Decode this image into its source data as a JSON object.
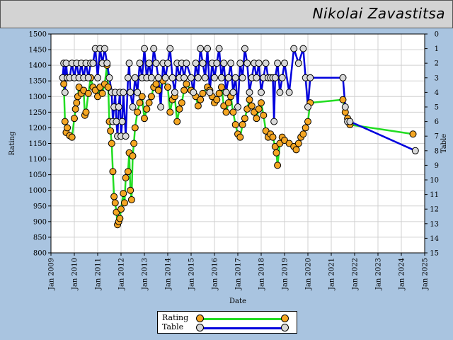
{
  "header": {
    "title": "Nikolai Zavastitsa"
  },
  "legend": {
    "rating_label": "Rating",
    "table_label": "Table"
  },
  "colors": {
    "rating_line": "#22dd22",
    "rating_dot": "#f5a623",
    "table_line": "#0000dd",
    "table_dot": "#d8d8d8",
    "background": "#a9c4e0"
  },
  "chart_data": {
    "type": "line",
    "xlabel": "Date",
    "ylabel_left": "Rating",
    "ylabel_right": "Table",
    "x_ticks": [
      "Jan 2009",
      "Jan 2010",
      "Jan 2011",
      "Jan 2012",
      "Jan 2013",
      "Jan 2014",
      "Jan 2015",
      "Jan 2016",
      "Jan 2017",
      "Jan 2018",
      "Jan 2019",
      "Jan 2020",
      "Jan 2021",
      "Jan 2022",
      "Jan 2023",
      "Jan 2024",
      "Jan 2025"
    ],
    "xlim": [
      2009,
      2025
    ],
    "ylim_left": [
      800,
      1500
    ],
    "ylim_right": [
      15,
      0
    ],
    "y_ticks_left": [
      800,
      850,
      900,
      950,
      1000,
      1050,
      1100,
      1150,
      1200,
      1250,
      1300,
      1350,
      1400,
      1450,
      1500
    ],
    "y_ticks_right": [
      0,
      1,
      2,
      3,
      4,
      5,
      6,
      7,
      8,
      9,
      10,
      11,
      12,
      13,
      14,
      15
    ],
    "grid": true,
    "legend_position": "bottom-center",
    "series": [
      {
        "name": "Rating",
        "axis": "left",
        "points": [
          [
            2009.55,
            1340
          ],
          [
            2009.6,
            1220
          ],
          [
            2009.65,
            1185
          ],
          [
            2009.7,
            1200
          ],
          [
            2009.8,
            1175
          ],
          [
            2009.9,
            1170
          ],
          [
            2010.0,
            1230
          ],
          [
            2010.05,
            1260
          ],
          [
            2010.1,
            1280
          ],
          [
            2010.15,
            1300
          ],
          [
            2010.2,
            1330
          ],
          [
            2010.3,
            1310
          ],
          [
            2010.4,
            1320
          ],
          [
            2010.45,
            1240
          ],
          [
            2010.5,
            1250
          ],
          [
            2010.6,
            1310
          ],
          [
            2010.7,
            1360
          ],
          [
            2010.8,
            1330
          ],
          [
            2010.9,
            1320
          ],
          [
            2011.0,
            1300
          ],
          [
            2011.1,
            1330
          ],
          [
            2011.2,
            1310
          ],
          [
            2011.3,
            1340
          ],
          [
            2011.4,
            1400
          ],
          [
            2011.45,
            1330
          ],
          [
            2011.5,
            1220
          ],
          [
            2011.55,
            1190
          ],
          [
            2011.6,
            1150
          ],
          [
            2011.65,
            1060
          ],
          [
            2011.7,
            980
          ],
          [
            2011.75,
            960
          ],
          [
            2011.8,
            930
          ],
          [
            2011.85,
            890
          ],
          [
            2011.9,
            900
          ],
          [
            2011.95,
            910
          ],
          [
            2012.0,
            940
          ],
          [
            2012.1,
            990
          ],
          [
            2012.15,
            960
          ],
          [
            2012.2,
            1040
          ],
          [
            2012.3,
            1060
          ],
          [
            2012.35,
            1120
          ],
          [
            2012.4,
            1000
          ],
          [
            2012.45,
            970
          ],
          [
            2012.5,
            1110
          ],
          [
            2012.55,
            1150
          ],
          [
            2012.6,
            1200
          ],
          [
            2012.7,
            1250
          ],
          [
            2012.8,
            1280
          ],
          [
            2012.9,
            1300
          ],
          [
            2013.0,
            1230
          ],
          [
            2013.1,
            1260
          ],
          [
            2013.2,
            1280
          ],
          [
            2013.3,
            1300
          ],
          [
            2013.4,
            1330
          ],
          [
            2013.5,
            1340
          ],
          [
            2013.6,
            1320
          ],
          [
            2013.8,
            1350
          ],
          [
            2014.0,
            1330
          ],
          [
            2014.1,
            1250
          ],
          [
            2014.2,
            1290
          ],
          [
            2014.3,
            1300
          ],
          [
            2014.4,
            1220
          ],
          [
            2014.5,
            1260
          ],
          [
            2014.6,
            1280
          ],
          [
            2014.7,
            1320
          ],
          [
            2014.8,
            1340
          ],
          [
            2015.0,
            1320
          ],
          [
            2015.2,
            1300
          ],
          [
            2015.3,
            1270
          ],
          [
            2015.4,
            1290
          ],
          [
            2015.5,
            1310
          ],
          [
            2015.7,
            1330
          ],
          [
            2015.8,
            1320
          ],
          [
            2015.9,
            1300
          ],
          [
            2016.0,
            1280
          ],
          [
            2016.1,
            1290
          ],
          [
            2016.2,
            1310
          ],
          [
            2016.3,
            1330
          ],
          [
            2016.4,
            1270
          ],
          [
            2016.5,
            1250
          ],
          [
            2016.6,
            1280
          ],
          [
            2016.7,
            1300
          ],
          [
            2016.8,
            1250
          ],
          [
            2016.9,
            1210
          ],
          [
            2017.0,
            1180
          ],
          [
            2017.1,
            1170
          ],
          [
            2017.2,
            1210
          ],
          [
            2017.3,
            1230
          ],
          [
            2017.4,
            1260
          ],
          [
            2017.5,
            1290
          ],
          [
            2017.6,
            1270
          ],
          [
            2017.7,
            1250
          ],
          [
            2017.8,
            1230
          ],
          [
            2017.9,
            1260
          ],
          [
            2018.0,
            1280
          ],
          [
            2018.1,
            1240
          ],
          [
            2018.2,
            1190
          ],
          [
            2018.3,
            1170
          ],
          [
            2018.4,
            1180
          ],
          [
            2018.5,
            1170
          ],
          [
            2018.6,
            1140
          ],
          [
            2018.65,
            1120
          ],
          [
            2018.7,
            1080
          ],
          [
            2018.8,
            1150
          ],
          [
            2018.9,
            1170
          ],
          [
            2019.0,
            1160
          ],
          [
            2019.2,
            1150
          ],
          [
            2019.4,
            1140
          ],
          [
            2019.5,
            1130
          ],
          [
            2019.6,
            1150
          ],
          [
            2019.7,
            1170
          ],
          [
            2019.8,
            1180
          ],
          [
            2019.9,
            1200
          ],
          [
            2020.0,
            1220
          ],
          [
            2020.1,
            1280
          ],
          [
            2021.5,
            1290
          ],
          [
            2021.6,
            1250
          ],
          [
            2021.7,
            1230
          ],
          [
            2021.8,
            1210
          ],
          [
            2024.5,
            1180
          ]
        ]
      },
      {
        "name": "Table",
        "axis": "right",
        "points": [
          [
            2009.5,
            3
          ],
          [
            2009.55,
            2
          ],
          [
            2009.6,
            4
          ],
          [
            2009.65,
            2
          ],
          [
            2009.7,
            3
          ],
          [
            2009.8,
            3
          ],
          [
            2009.9,
            2
          ],
          [
            2010.0,
            3
          ],
          [
            2010.1,
            2
          ],
          [
            2010.2,
            3
          ],
          [
            2010.3,
            2
          ],
          [
            2010.4,
            3
          ],
          [
            2010.5,
            2
          ],
          [
            2010.6,
            3
          ],
          [
            2010.7,
            2
          ],
          [
            2010.8,
            2
          ],
          [
            2010.9,
            1
          ],
          [
            2011.0,
            3
          ],
          [
            2011.1,
            1
          ],
          [
            2011.2,
            2
          ],
          [
            2011.3,
            1
          ],
          [
            2011.4,
            2
          ],
          [
            2011.5,
            3
          ],
          [
            2011.6,
            4
          ],
          [
            2011.65,
            6
          ],
          [
            2011.7,
            5
          ],
          [
            2011.75,
            4
          ],
          [
            2011.8,
            6
          ],
          [
            2011.85,
            7
          ],
          [
            2011.9,
            5
          ],
          [
            2011.95,
            4
          ],
          [
            2012.0,
            7
          ],
          [
            2012.05,
            6
          ],
          [
            2012.1,
            4
          ],
          [
            2012.2,
            7
          ],
          [
            2012.3,
            3
          ],
          [
            2012.35,
            2
          ],
          [
            2012.4,
            4
          ],
          [
            2012.5,
            5
          ],
          [
            2012.6,
            3
          ],
          [
            2012.7,
            4
          ],
          [
            2012.8,
            2
          ],
          [
            2012.9,
            3
          ],
          [
            2013.0,
            1
          ],
          [
            2013.1,
            3
          ],
          [
            2013.2,
            2
          ],
          [
            2013.3,
            3
          ],
          [
            2013.4,
            1
          ],
          [
            2013.5,
            2
          ],
          [
            2013.6,
            3
          ],
          [
            2013.7,
            5
          ],
          [
            2013.8,
            2
          ],
          [
            2013.9,
            3
          ],
          [
            2014.0,
            2
          ],
          [
            2014.1,
            1
          ],
          [
            2014.2,
            3
          ],
          [
            2014.3,
            4
          ],
          [
            2014.4,
            2
          ],
          [
            2014.5,
            3
          ],
          [
            2014.6,
            2
          ],
          [
            2014.7,
            3
          ],
          [
            2014.8,
            2
          ],
          [
            2015.0,
            3
          ],
          [
            2015.1,
            4
          ],
          [
            2015.2,
            2
          ],
          [
            2015.3,
            3
          ],
          [
            2015.4,
            1
          ],
          [
            2015.5,
            2
          ],
          [
            2015.6,
            3
          ],
          [
            2015.7,
            1
          ],
          [
            2015.8,
            4
          ],
          [
            2015.9,
            2
          ],
          [
            2016.0,
            3
          ],
          [
            2016.1,
            2
          ],
          [
            2016.2,
            1
          ],
          [
            2016.3,
            3
          ],
          [
            2016.4,
            2
          ],
          [
            2016.5,
            4
          ],
          [
            2016.6,
            3
          ],
          [
            2016.7,
            2
          ],
          [
            2016.8,
            4
          ],
          [
            2016.9,
            3
          ],
          [
            2017.0,
            5
          ],
          [
            2017.1,
            2
          ],
          [
            2017.2,
            3
          ],
          [
            2017.3,
            1
          ],
          [
            2017.4,
            2
          ],
          [
            2017.5,
            4
          ],
          [
            2017.6,
            3
          ],
          [
            2017.7,
            2
          ],
          [
            2017.8,
            3
          ],
          [
            2017.9,
            2
          ],
          [
            2018.0,
            4
          ],
          [
            2018.1,
            3
          ],
          [
            2018.2,
            2
          ],
          [
            2018.3,
            3
          ],
          [
            2018.4,
            3
          ],
          [
            2018.5,
            3
          ],
          [
            2018.55,
            6
          ],
          [
            2018.6,
            3
          ],
          [
            2018.7,
            2
          ],
          [
            2018.8,
            4
          ],
          [
            2018.9,
            3
          ],
          [
            2019.0,
            2
          ],
          [
            2019.2,
            4
          ],
          [
            2019.4,
            1
          ],
          [
            2019.6,
            2
          ],
          [
            2019.8,
            1
          ],
          [
            2019.9,
            3
          ],
          [
            2020.0,
            5
          ],
          [
            2020.1,
            3
          ],
          [
            2021.5,
            3
          ],
          [
            2021.6,
            5
          ],
          [
            2021.7,
            6
          ],
          [
            2021.8,
            6
          ],
          [
            2024.6,
            8
          ]
        ]
      }
    ]
  }
}
